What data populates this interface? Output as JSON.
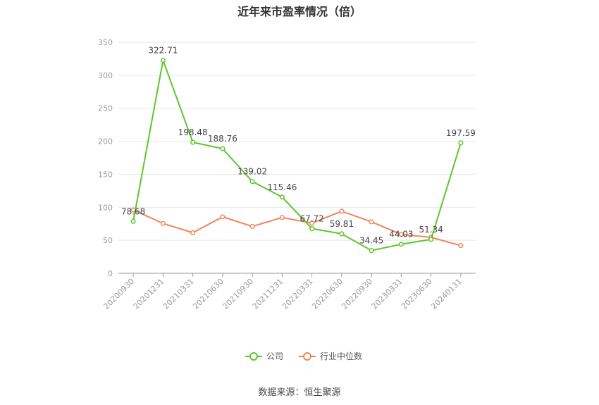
{
  "chart_data": {
    "type": "line",
    "title": "近年来市盈率情况（倍）",
    "categories": [
      "20200930",
      "20201231",
      "20210331",
      "20210630",
      "20210930",
      "20211231",
      "20220331",
      "20220630",
      "20220930",
      "20230331",
      "20230630",
      "20240131"
    ],
    "series": [
      {
        "name": "公司",
        "color": "#5dc62e",
        "values": [
          78.68,
          322.71,
          198.48,
          188.76,
          139.02,
          115.46,
          67.72,
          59.81,
          34.45,
          44.03,
          51.34,
          197.59
        ],
        "labels": [
          "78.68",
          "322.71",
          "198.48",
          "188.76",
          "139.02",
          "115.46",
          "67.72",
          "59.81",
          "34.45",
          "44.03",
          "51.34",
          "197.59"
        ]
      },
      {
        "name": "行业中位数",
        "color": "#f0865a",
        "values": [
          96,
          75.5,
          61.5,
          85.5,
          71,
          84.5,
          76,
          94,
          78,
          59,
          54.5,
          42
        ]
      }
    ],
    "ylim": [
      0,
      350
    ],
    "yticks": [
      "0",
      "50",
      "100",
      "150",
      "200",
      "250",
      "300",
      "350"
    ],
    "grid": true,
    "legend_position": "bottom"
  },
  "source_text": "数据来源：恒生聚源"
}
